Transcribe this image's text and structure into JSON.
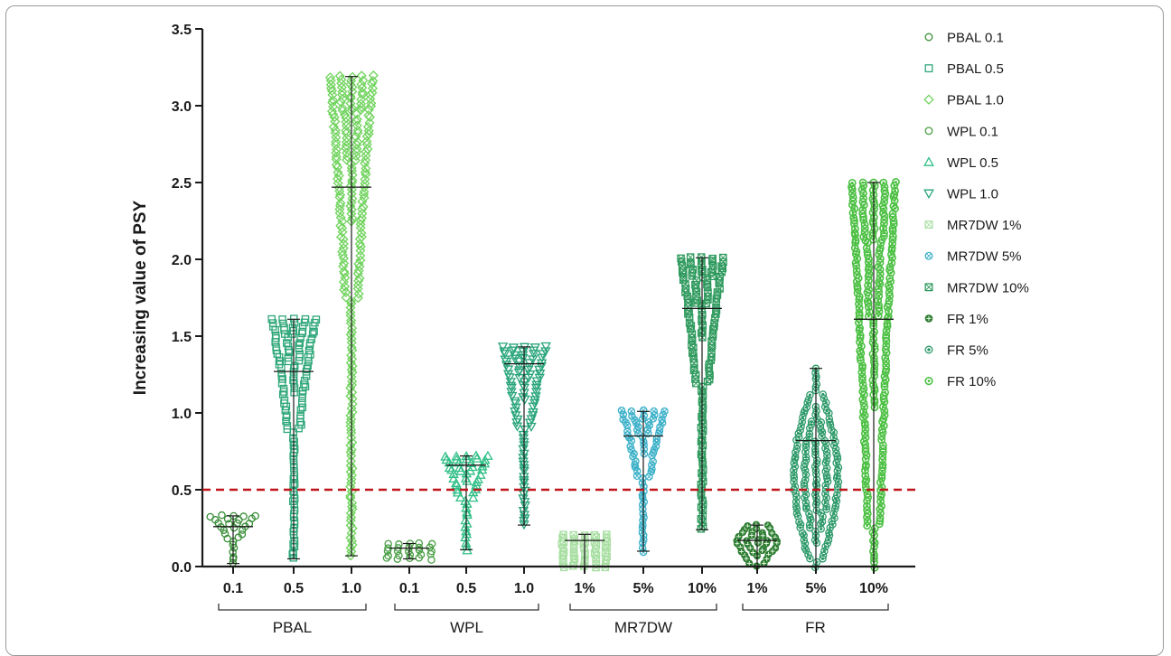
{
  "chart_data": {
    "type": "scatter",
    "subtype": "violin-dot-plot",
    "ylabel": "Increasing value of PSY",
    "ylim": [
      0,
      3.5
    ],
    "yticks": [
      "0.0",
      "0.5",
      "1.0",
      "1.5",
      "2.0",
      "2.5",
      "3.0",
      "3.5"
    ],
    "threshold": {
      "value": 0.5,
      "style": "dashed",
      "color": "#c0141b"
    },
    "grid": false,
    "legend_position": "right",
    "groups": [
      {
        "label": "PBAL",
        "first": 0,
        "last": 2
      },
      {
        "label": "WPL",
        "first": 3,
        "last": 5
      },
      {
        "label": "MR7DW",
        "first": 6,
        "last": 8
      },
      {
        "label": "FR",
        "first": 9,
        "last": 11
      }
    ],
    "series": [
      {
        "name": "PBAL 0.1",
        "tick": "0.1",
        "marker": "circle",
        "color": "#3a8f3a",
        "min": 0.02,
        "max": 0.33,
        "median": 0.26,
        "shape": "top"
      },
      {
        "name": "PBAL 0.5",
        "tick": "0.5",
        "marker": "square",
        "color": "#2fa77a",
        "min": 0.05,
        "max": 1.61,
        "median": 1.27,
        "shape": "top"
      },
      {
        "name": "PBAL 1.0",
        "tick": "1.0",
        "marker": "diamond",
        "color": "#6fd35c",
        "min": 0.07,
        "max": 3.19,
        "median": 2.47,
        "shape": "top"
      },
      {
        "name": "WPL 0.1",
        "tick": "0.1",
        "marker": "circle",
        "color": "#4a9f45",
        "min": 0.05,
        "max": 0.15,
        "median": 0.12,
        "shape": "top"
      },
      {
        "name": "WPL 0.5",
        "tick": "0.5",
        "marker": "triangle-up",
        "color": "#2fbf86",
        "min": 0.11,
        "max": 0.72,
        "median": 0.66,
        "shape": "top"
      },
      {
        "name": "WPL 1.0",
        "tick": "1.0",
        "marker": "triangle-down",
        "color": "#28a57a",
        "min": 0.27,
        "max": 1.43,
        "median": 1.32,
        "shape": "top"
      },
      {
        "name": "MR7DW 1%",
        "tick": "1%",
        "marker": "square-x",
        "color": "#a9dfa3",
        "min": 0.0,
        "max": 0.21,
        "median": 0.17,
        "shape": "top"
      },
      {
        "name": "MR7DW 5%",
        "tick": "5%",
        "marker": "circle-x",
        "color": "#3ab0c8",
        "min": 0.1,
        "max": 1.01,
        "median": 0.85,
        "shape": "top"
      },
      {
        "name": "MR7DW 10%",
        "tick": "10%",
        "marker": "square-x",
        "color": "#2f9a5e",
        "min": 0.24,
        "max": 2.01,
        "median": 1.68,
        "shape": "top"
      },
      {
        "name": "FR 1%",
        "tick": "1%",
        "marker": "plus-circle",
        "color": "#2e7d32",
        "min": 0.0,
        "max": 0.27,
        "median": 0.17,
        "shape": "center"
      },
      {
        "name": "FR 5%",
        "tick": "5%",
        "marker": "star-circle",
        "color": "#2e9a6a",
        "min": 0.0,
        "max": 1.29,
        "median": 0.82,
        "shape": "mid"
      },
      {
        "name": "FR 10%",
        "tick": "10%",
        "marker": "dot-circle",
        "color": "#4cc043",
        "min": 0.0,
        "max": 2.5,
        "median": 1.61,
        "shape": "uniform"
      }
    ]
  }
}
